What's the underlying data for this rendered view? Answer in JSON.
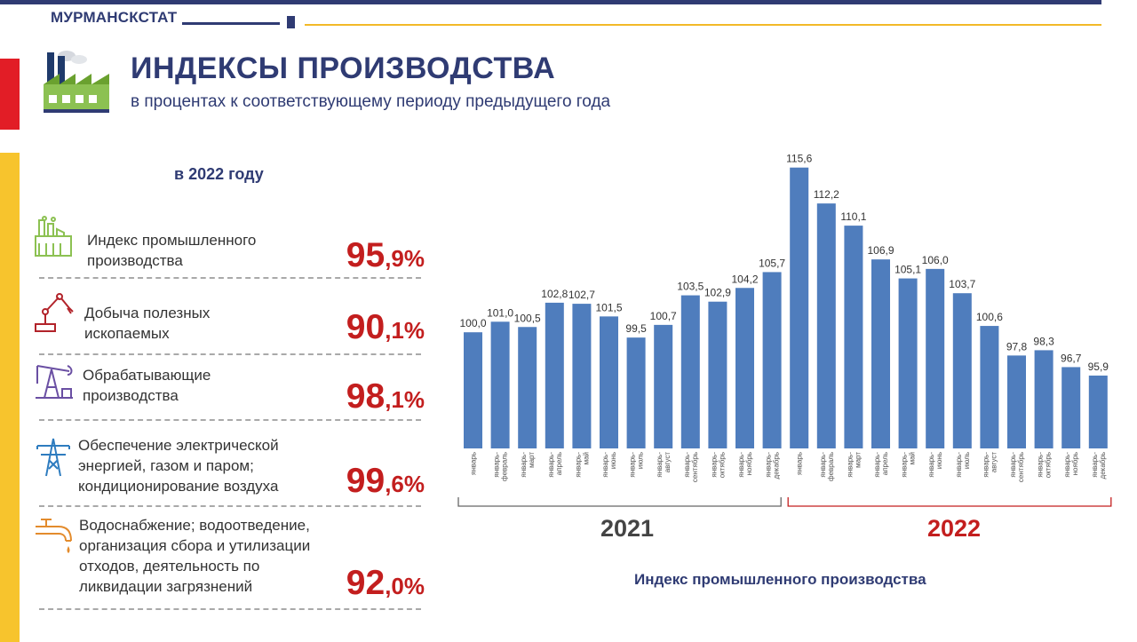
{
  "header": {
    "brand": "МУРМАНСКСТАТ",
    "title": "ИНДЕКСЫ ПРОИЗВОДСТВА",
    "subtitle": "в процентах к соответствующему периоду предыдущего года"
  },
  "summary": {
    "year_heading": "в 2022 году",
    "items": [
      {
        "label_lines": [
          "Индекс промышленного",
          "производства"
        ],
        "int": "95",
        "dec": ",9%",
        "icon": "factory-icon"
      },
      {
        "label_lines": [
          "Добыча полезных",
          "ископаемых"
        ],
        "int": "90",
        "dec": ",1%",
        "icon": "robotic-arm-icon"
      },
      {
        "label_lines": [
          "Обрабатывающие",
          "производства"
        ],
        "int": "98",
        "dec": ",1%",
        "icon": "oil-pump-icon"
      },
      {
        "label_lines": [
          "Обеспечение электрической",
          "энергией, газом и паром;",
          "кондиционирование воздуха"
        ],
        "int": "99",
        "dec": ",6%",
        "icon": "power-tower-icon"
      },
      {
        "label_lines": [
          "Водоснабжение; водоотведение,",
          "организация сбора и утилизации",
          "отходов, деятельность по",
          "ликвидации загрязнений"
        ],
        "int": "92",
        "dec": ",0%",
        "icon": "water-tap-icon"
      }
    ]
  },
  "chart_data": {
    "type": "bar",
    "title": "Индекс промышленного производства",
    "categories": [
      [
        "январь"
      ],
      [
        "январь-",
        "февраль"
      ],
      [
        "январь-",
        "март"
      ],
      [
        "январь-",
        "апрель"
      ],
      [
        "январь-",
        "май"
      ],
      [
        "январь-",
        "июнь"
      ],
      [
        "январь-",
        "июль"
      ],
      [
        "январь-",
        "август"
      ],
      [
        "январь-",
        "сентябрь"
      ],
      [
        "январь-",
        "октябрь"
      ],
      [
        "январь-",
        "ноябрь"
      ],
      [
        "январь-",
        "декабрь"
      ],
      [
        "январь"
      ],
      [
        "январь-",
        "февраль"
      ],
      [
        "январь-",
        "март"
      ],
      [
        "январь-",
        "апрель"
      ],
      [
        "январь-",
        "май"
      ],
      [
        "январь-",
        "июнь"
      ],
      [
        "январь-",
        "июль"
      ],
      [
        "январь-",
        "август"
      ],
      [
        "январь-",
        "сентябрь"
      ],
      [
        "январь-",
        "октябрь"
      ],
      [
        "январь-",
        "ноябрь"
      ],
      [
        "январь-",
        "декабрь"
      ]
    ],
    "values": [
      100.0,
      101.0,
      100.5,
      102.8,
      102.7,
      101.5,
      99.5,
      100.7,
      103.5,
      102.9,
      104.2,
      105.7,
      115.6,
      112.2,
      110.1,
      106.9,
      105.1,
      106.0,
      103.7,
      100.6,
      97.8,
      98.3,
      96.7,
      95.9
    ],
    "value_labels": [
      "100,0",
      "101,0",
      "100,5",
      "102,8",
      "102,7",
      "101,5",
      "99,5",
      "100,7",
      "103,5",
      "102,9",
      "104,2",
      "105,7",
      "115,6",
      "112,2",
      "110,1",
      "106,9",
      "105,1",
      "106,0",
      "103,7",
      "100,6",
      "97,8",
      "98,3",
      "96,7",
      "95,9"
    ],
    "groups": [
      {
        "label": "2021",
        "count": 12
      },
      {
        "label": "2022",
        "count": 12
      }
    ],
    "ylim": [
      89,
      116.5
    ],
    "bar_color": "#4f7dbd"
  },
  "colors": {
    "brand_blue": "#2f3b73",
    "accent_red": "#c31e1e",
    "bar_blue": "#4f7dbd",
    "gold": "#f2b928"
  }
}
